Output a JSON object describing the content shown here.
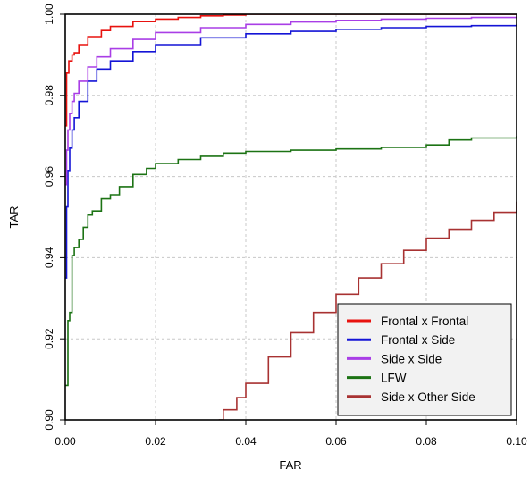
{
  "chart_data": {
    "type": "line",
    "title": "",
    "xlabel": "FAR",
    "ylabel": "TAR",
    "xlim": [
      0,
      0.1
    ],
    "ylim": [
      0.9,
      1.0
    ],
    "x_ticks": [
      "0.00",
      "0.02",
      "0.04",
      "0.06",
      "0.08",
      "0.10"
    ],
    "y_ticks": [
      "0.90",
      "0.92",
      "0.94",
      "0.96",
      "0.98",
      "1.00"
    ],
    "grid": true,
    "legend_position": "bottom-right",
    "series": [
      {
        "name": "Frontal x Frontal",
        "color": "#e8120f",
        "x": [
          0.0,
          0.0003,
          0.0008,
          0.0015,
          0.002,
          0.003,
          0.005,
          0.008,
          0.01,
          0.015,
          0.02,
          0.025,
          0.03,
          0.035,
          0.04,
          0.05,
          0.07,
          0.1
        ],
        "y": [
          0.9725,
          0.9855,
          0.9885,
          0.99,
          0.9905,
          0.9925,
          0.9945,
          0.996,
          0.997,
          0.9982,
          0.9988,
          0.9992,
          0.9996,
          0.9998,
          1.0,
          1.0,
          1.0,
          1.0
        ]
      },
      {
        "name": "Frontal x Side",
        "color": "#1414d6",
        "x": [
          0.0,
          0.0003,
          0.0006,
          0.001,
          0.0015,
          0.002,
          0.003,
          0.005,
          0.007,
          0.01,
          0.015,
          0.02,
          0.03,
          0.04,
          0.05,
          0.06,
          0.07,
          0.08,
          0.09,
          0.1
        ],
        "y": [
          0.935,
          0.9525,
          0.9615,
          0.967,
          0.9715,
          0.9745,
          0.9785,
          0.9835,
          0.9865,
          0.9885,
          0.9908,
          0.9925,
          0.9942,
          0.9952,
          0.9958,
          0.9963,
          0.9967,
          0.997,
          0.9972,
          0.9975
        ]
      },
      {
        "name": "Side x Side",
        "color": "#a93ee6",
        "x": [
          0.0,
          0.0003,
          0.0006,
          0.001,
          0.0015,
          0.002,
          0.003,
          0.005,
          0.007,
          0.01,
          0.015,
          0.02,
          0.03,
          0.04,
          0.05,
          0.06,
          0.07,
          0.08,
          0.09,
          0.1
        ],
        "y": [
          0.958,
          0.9665,
          0.9715,
          0.9755,
          0.9785,
          0.9805,
          0.9835,
          0.987,
          0.9895,
          0.9915,
          0.9938,
          0.9955,
          0.9967,
          0.9975,
          0.9981,
          0.9985,
          0.9988,
          0.999,
          0.9992,
          0.9993
        ]
      },
      {
        "name": "LFW",
        "color": "#1c7314",
        "x": [
          0.0,
          0.0003,
          0.0006,
          0.001,
          0.0015,
          0.002,
          0.003,
          0.004,
          0.005,
          0.006,
          0.008,
          0.01,
          0.012,
          0.015,
          0.018,
          0.02,
          0.025,
          0.03,
          0.035,
          0.04,
          0.05,
          0.06,
          0.07,
          0.08,
          0.085,
          0.09,
          0.1
        ],
        "y": [
          0.9085,
          0.9085,
          0.9245,
          0.9265,
          0.9405,
          0.9425,
          0.9445,
          0.9475,
          0.9505,
          0.9515,
          0.9545,
          0.9555,
          0.9575,
          0.9605,
          0.962,
          0.9632,
          0.9642,
          0.965,
          0.9658,
          0.9662,
          0.9665,
          0.9668,
          0.9672,
          0.9678,
          0.969,
          0.9695,
          0.97
        ]
      },
      {
        "name": "Side x Other Side",
        "color": "#a83232",
        "x": [
          0.034,
          0.035,
          0.038,
          0.04,
          0.045,
          0.05,
          0.055,
          0.06,
          0.065,
          0.07,
          0.075,
          0.08,
          0.085,
          0.09,
          0.095,
          0.1
        ],
        "y": [
          0.9,
          0.9025,
          0.9055,
          0.909,
          0.9155,
          0.9215,
          0.9265,
          0.931,
          0.935,
          0.9385,
          0.9418,
          0.9448,
          0.947,
          0.9492,
          0.9512,
          0.9538
        ]
      }
    ]
  }
}
